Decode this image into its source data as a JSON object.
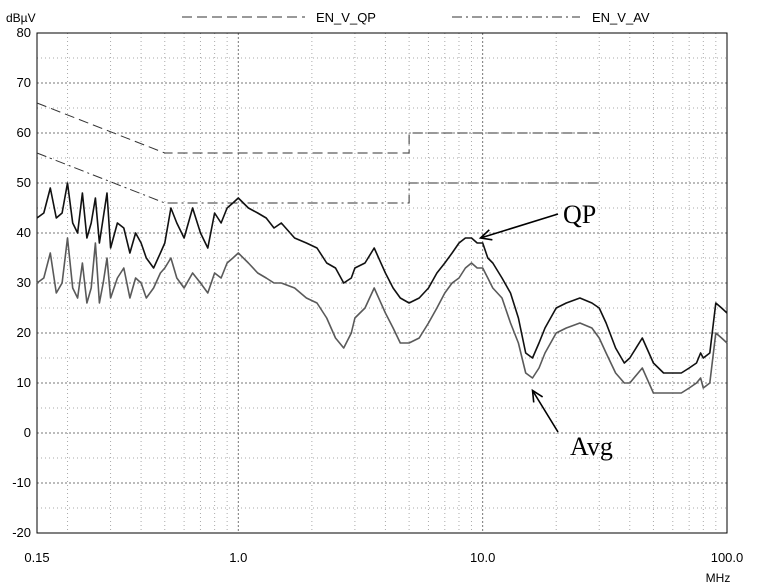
{
  "chart_data": {
    "type": "line",
    "y_unit": "dBµV",
    "x_unit": "MHz",
    "x_scale": "log",
    "xlim": [
      0.15,
      100.0
    ],
    "ylim": [
      -20,
      80
    ],
    "x_ticks": [
      "0.15",
      "1.0",
      "10.0",
      "100.0"
    ],
    "y_ticks": [
      "80",
      "70",
      "60",
      "50",
      "40",
      "30",
      "20",
      "10",
      "0",
      "-10",
      "-20"
    ],
    "grid": true,
    "legend_position": "top",
    "legend": [
      {
        "label": "EN_V_QP",
        "style": "dashed"
      },
      {
        "label": "EN_V_AV",
        "style": "dash-dot"
      }
    ],
    "annotations": [
      {
        "text": "QP",
        "target": [
          9.8,
          39
        ]
      },
      {
        "text": "Avg",
        "target": [
          16,
          8.5
        ]
      }
    ],
    "limit_lines": [
      {
        "name": "EN_V_QP",
        "style": "dashed",
        "x": [
          0.15,
          0.5,
          0.5,
          5.0,
          5.0,
          30.0
        ],
        "y": [
          66,
          56,
          56,
          56,
          60,
          60
        ]
      },
      {
        "name": "EN_V_AV",
        "style": "dash-dot",
        "x": [
          0.15,
          0.5,
          0.5,
          5.0,
          5.0,
          30.0
        ],
        "y": [
          56,
          46,
          46,
          46,
          50,
          50
        ]
      }
    ],
    "series": [
      {
        "name": "QP",
        "color": "#111111",
        "x": [
          0.15,
          0.16,
          0.17,
          0.18,
          0.19,
          0.2,
          0.21,
          0.22,
          0.23,
          0.24,
          0.25,
          0.26,
          0.27,
          0.28,
          0.29,
          0.3,
          0.32,
          0.34,
          0.36,
          0.38,
          0.4,
          0.42,
          0.45,
          0.48,
          0.5,
          0.53,
          0.56,
          0.6,
          0.65,
          0.7,
          0.75,
          0.8,
          0.85,
          0.9,
          0.95,
          1.0,
          1.1,
          1.2,
          1.3,
          1.4,
          1.5,
          1.7,
          1.9,
          2.1,
          2.3,
          2.5,
          2.7,
          2.9,
          3.0,
          3.3,
          3.6,
          4.0,
          4.3,
          4.6,
          5.0,
          5.5,
          6.0,
          6.5,
          7.0,
          7.5,
          8.0,
          8.5,
          9.0,
          9.5,
          10.0,
          10.5,
          11.0,
          12.0,
          13.0,
          14.0,
          15.0,
          16.0,
          17.0,
          18.0,
          20.0,
          22.0,
          25.0,
          28.0,
          30.0,
          32.0,
          35.0,
          38.0,
          40.0,
          45.0,
          50.0,
          55.0,
          60.0,
          65.0,
          70.0,
          75.0,
          78.0,
          80.0,
          85.0,
          90.0,
          95.0,
          100.0
        ],
        "y": [
          43,
          44,
          49,
          43,
          44,
          50,
          42,
          40,
          48,
          39,
          42,
          47,
          38,
          43,
          48,
          37,
          42,
          41,
          36,
          40,
          38,
          35,
          33,
          36,
          38,
          45,
          42,
          39,
          45,
          40,
          37,
          44,
          42,
          45,
          46,
          47,
          45,
          44,
          43,
          41,
          42,
          39,
          38,
          37,
          34,
          33,
          30,
          31,
          33,
          34,
          37,
          32,
          29,
          27,
          26,
          27,
          29,
          32,
          34,
          36,
          38,
          39,
          39,
          38,
          38,
          35,
          34,
          31,
          28,
          23,
          16,
          15,
          18,
          21,
          25,
          26,
          27,
          26,
          25,
          22,
          17,
          14,
          15,
          19,
          14,
          12,
          12,
          12,
          13,
          14,
          16,
          15,
          16,
          26,
          25,
          24
        ]
      },
      {
        "name": "Avg",
        "color": "#5a5a5a",
        "x": [
          0.15,
          0.16,
          0.17,
          0.18,
          0.19,
          0.2,
          0.21,
          0.22,
          0.23,
          0.24,
          0.25,
          0.26,
          0.27,
          0.28,
          0.29,
          0.3,
          0.32,
          0.34,
          0.36,
          0.38,
          0.4,
          0.42,
          0.45,
          0.48,
          0.5,
          0.53,
          0.56,
          0.6,
          0.65,
          0.7,
          0.75,
          0.8,
          0.85,
          0.9,
          0.95,
          1.0,
          1.1,
          1.2,
          1.3,
          1.4,
          1.5,
          1.7,
          1.9,
          2.1,
          2.3,
          2.5,
          2.7,
          2.9,
          3.0,
          3.3,
          3.6,
          4.0,
          4.3,
          4.6,
          5.0,
          5.5,
          6.0,
          6.5,
          7.0,
          7.5,
          8.0,
          8.5,
          9.0,
          9.5,
          10.0,
          10.5,
          11.0,
          12.0,
          13.0,
          14.0,
          15.0,
          16.0,
          17.0,
          18.0,
          20.0,
          22.0,
          25.0,
          28.0,
          30.0,
          32.0,
          35.0,
          38.0,
          40.0,
          45.0,
          50.0,
          55.0,
          60.0,
          65.0,
          70.0,
          75.0,
          78.0,
          80.0,
          85.0,
          90.0,
          95.0,
          100.0
        ],
        "y": [
          30,
          31,
          36,
          28,
          30,
          39,
          29,
          27,
          34,
          26,
          29,
          38,
          26,
          30,
          35,
          27,
          31,
          33,
          27,
          31,
          30,
          27,
          29,
          32,
          33,
          35,
          31,
          29,
          32,
          30,
          28,
          32,
          31,
          34,
          35,
          36,
          34,
          32,
          31,
          30,
          30,
          29,
          27,
          26,
          23,
          19,
          17,
          20,
          23,
          25,
          29,
          24,
          21,
          18,
          18,
          19,
          22,
          25,
          28,
          30,
          31,
          33,
          34,
          33,
          33,
          31,
          29,
          27,
          22,
          18,
          12,
          11,
          13,
          16,
          20,
          21,
          22,
          21,
          19,
          16,
          12,
          10,
          10,
          13,
          8,
          8,
          8,
          8,
          9,
          10,
          11,
          9,
          10,
          20,
          19,
          18
        ]
      }
    ]
  }
}
